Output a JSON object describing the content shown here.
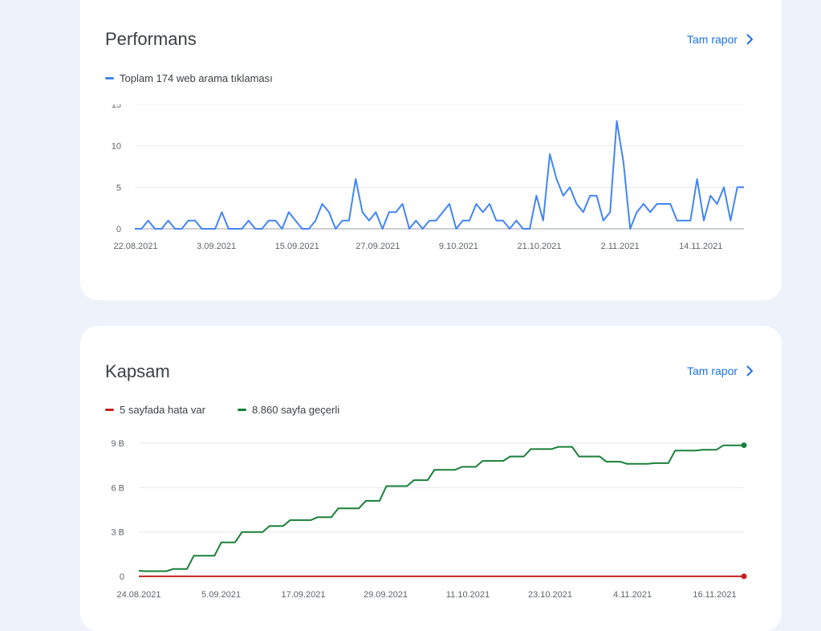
{
  "performance": {
    "title": "Performans",
    "report_link": "Tam rapor",
    "legend": "Toplam 174 web arama tıklaması",
    "color": "#4285f4"
  },
  "coverage": {
    "title": "Kapsam",
    "report_link": "Tam rapor",
    "legend_error": "5 sayfada hata var",
    "legend_valid": "8.860 sayfa geçerli",
    "error_color": "#c5221f",
    "valid_color": "#188038"
  },
  "chart_data": [
    {
      "type": "line",
      "title": "Performans",
      "x_start": "22.08.2021",
      "x_end": "24.11.2021",
      "x_ticks": [
        "22.08.2021",
        "3.09.2021",
        "15.09.2021",
        "27.09.2021",
        "9.10.2021",
        "21.10.2021",
        "2.11.2021",
        "14.11.2021"
      ],
      "y_ticks": [
        "0",
        "5",
        "10",
        "15"
      ],
      "ylim": [
        0,
        15
      ],
      "grid": true,
      "series": [
        {
          "name": "Toplam 174 web arama tıklaması",
          "values": [
            0,
            0,
            1,
            0,
            0,
            1,
            0,
            0,
            1,
            1,
            0,
            0,
            0,
            2,
            0,
            0,
            0,
            1,
            0,
            0,
            1,
            1,
            0,
            2,
            1,
            0,
            0,
            1,
            3,
            2,
            0,
            1,
            1,
            6,
            2,
            1,
            2,
            0,
            2,
            2,
            3,
            0,
            1,
            0,
            1,
            1,
            2,
            3,
            0,
            1,
            1,
            3,
            2,
            3,
            1,
            1,
            0,
            1,
            0,
            0,
            4,
            1,
            9,
            6,
            4,
            5,
            3,
            2,
            4,
            4,
            1,
            2,
            13,
            8,
            0,
            2,
            3,
            2,
            3,
            3,
            3,
            1,
            1,
            1,
            6,
            1,
            4,
            3,
            5,
            1,
            5,
            5
          ]
        }
      ]
    },
    {
      "type": "line",
      "title": "Kapsam",
      "x_start": "24.08.2021",
      "x_end": "20.11.2021",
      "x_ticks": [
        "24.08.2021",
        "5.09.2021",
        "17.09.2021",
        "29.09.2021",
        "11.10.2021",
        "23.10.2021",
        "4.11.2021",
        "16.11.2021"
      ],
      "y_ticks": [
        "0",
        "3 B",
        "6 B",
        "9 B"
      ],
      "ylim": [
        0,
        9000
      ],
      "grid": true,
      "series": [
        {
          "name": "5 sayfada hata var",
          "values": [
            5,
            5,
            5,
            5,
            5,
            5,
            5,
            5,
            5,
            5,
            5,
            5,
            5,
            5,
            5,
            5,
            5,
            5,
            5,
            5,
            5,
            5,
            5,
            5,
            5,
            5,
            5,
            5,
            5,
            5,
            5,
            5,
            5,
            5,
            5,
            5,
            5,
            5,
            5,
            5,
            5,
            5,
            5,
            5,
            5,
            5,
            5,
            5,
            5,
            5,
            5,
            5,
            5,
            5,
            5,
            5,
            5,
            5,
            5,
            5,
            5,
            5,
            5,
            5,
            5,
            5,
            5,
            5,
            5,
            5,
            5,
            5,
            5,
            5,
            5,
            5,
            5,
            5,
            5,
            5,
            5,
            5,
            5,
            5,
            5,
            5,
            5,
            5,
            5
          ]
        },
        {
          "name": "8.860 sayfa geçerli",
          "values": [
            380,
            350,
            350,
            350,
            350,
            500,
            500,
            500,
            1400,
            1400,
            1400,
            1400,
            2300,
            2300,
            2300,
            3000,
            3000,
            3000,
            3000,
            3400,
            3400,
            3400,
            3800,
            3800,
            3800,
            3800,
            4000,
            4000,
            4000,
            4600,
            4600,
            4600,
            4600,
            5100,
            5100,
            5100,
            6100,
            6100,
            6100,
            6100,
            6500,
            6500,
            6500,
            7200,
            7200,
            7200,
            7200,
            7400,
            7400,
            7400,
            7800,
            7800,
            7800,
            7800,
            8100,
            8100,
            8100,
            8600,
            8600,
            8600,
            8600,
            8750,
            8750,
            8750,
            8100,
            8100,
            8100,
            8100,
            7750,
            7750,
            7750,
            7600,
            7600,
            7600,
            7600,
            7650,
            7650,
            7650,
            8500,
            8500,
            8500,
            8500,
            8550,
            8550,
            8550,
            8850,
            8850,
            8850,
            8860
          ]
        }
      ]
    }
  ]
}
